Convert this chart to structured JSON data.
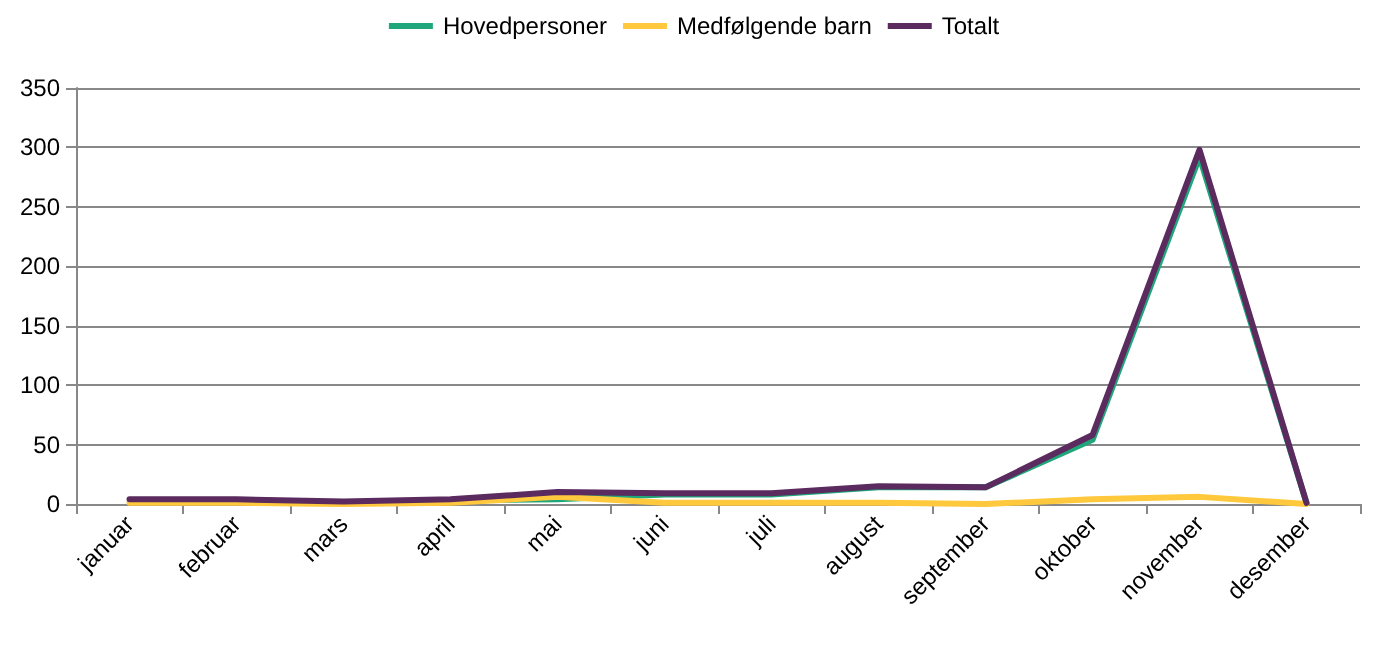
{
  "chart_data": {
    "type": "line",
    "categories": [
      "januar",
      "februar",
      "mars",
      "april",
      "mai",
      "juni",
      "juli",
      "august",
      "september",
      "oktober",
      "november",
      "desember"
    ],
    "series": [
      {
        "name": "Hovedpersoner",
        "color": "#1fa67a",
        "values": [
          null,
          null,
          null,
          3,
          4,
          8,
          8,
          14,
          14,
          54,
          292,
          1
        ]
      },
      {
        "name": "Medfølgende barn",
        "color": "#ffc83d",
        "values": [
          1,
          1,
          0,
          1,
          6,
          1,
          1,
          1,
          0,
          4,
          6,
          0
        ]
      },
      {
        "name": "Totalt",
        "color": "#5b2a5e",
        "values": [
          4,
          4,
          2,
          4,
          10,
          9,
          9,
          15,
          14,
          58,
          298,
          1
        ]
      }
    ],
    "ylim": [
      0,
      350
    ],
    "yticks": [
      0,
      50,
      100,
      150,
      200,
      250,
      300,
      350
    ],
    "grid": "y",
    "legend": "top",
    "marker": "none",
    "line_style": "solid"
  }
}
